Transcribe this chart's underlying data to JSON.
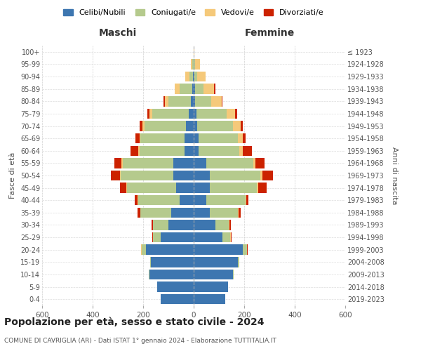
{
  "age_groups": [
    "0-4",
    "5-9",
    "10-14",
    "15-19",
    "20-24",
    "25-29",
    "30-34",
    "35-39",
    "40-44",
    "45-49",
    "50-54",
    "55-59",
    "60-64",
    "65-69",
    "70-74",
    "75-79",
    "80-84",
    "85-89",
    "90-94",
    "95-99",
    "100+"
  ],
  "birth_years": [
    "2019-2023",
    "2014-2018",
    "2009-2013",
    "2004-2008",
    "1999-2003",
    "1994-1998",
    "1989-1993",
    "1984-1988",
    "1979-1983",
    "1974-1978",
    "1969-1973",
    "1964-1968",
    "1959-1963",
    "1954-1958",
    "1949-1953",
    "1944-1948",
    "1939-1943",
    "1934-1938",
    "1929-1933",
    "1924-1928",
    "≤ 1923"
  ],
  "maschi": {
    "celibi": [
      130,
      145,
      175,
      170,
      190,
      130,
      100,
      90,
      55,
      70,
      80,
      80,
      35,
      35,
      30,
      20,
      10,
      5,
      3,
      0,
      0
    ],
    "coniugati": [
      0,
      0,
      2,
      3,
      15,
      30,
      60,
      120,
      165,
      195,
      210,
      200,
      180,
      175,
      165,
      145,
      90,
      50,
      15,
      5,
      0
    ],
    "vedovi": [
      0,
      0,
      0,
      0,
      2,
      2,
      2,
      2,
      2,
      3,
      3,
      5,
      5,
      5,
      8,
      10,
      15,
      20,
      15,
      5,
      0
    ],
    "divorziati": [
      0,
      0,
      0,
      0,
      2,
      2,
      5,
      10,
      10,
      25,
      35,
      30,
      30,
      15,
      10,
      8,
      5,
      0,
      0,
      0,
      0
    ]
  },
  "femmine": {
    "nubili": [
      125,
      135,
      155,
      175,
      195,
      115,
      85,
      65,
      50,
      65,
      65,
      50,
      20,
      20,
      15,
      10,
      5,
      5,
      3,
      0,
      0
    ],
    "coniugate": [
      0,
      0,
      2,
      5,
      15,
      30,
      55,
      110,
      155,
      185,
      200,
      185,
      160,
      155,
      140,
      120,
      65,
      35,
      10,
      5,
      0
    ],
    "vedove": [
      0,
      0,
      0,
      0,
      2,
      2,
      2,
      2,
      2,
      5,
      8,
      10,
      15,
      20,
      30,
      35,
      40,
      40,
      35,
      20,
      2
    ],
    "divorziate": [
      0,
      0,
      0,
      0,
      2,
      2,
      5,
      10,
      10,
      35,
      40,
      35,
      35,
      10,
      10,
      8,
      5,
      5,
      0,
      0,
      0
    ]
  },
  "colors": {
    "celibi": "#3d76b0",
    "coniugati": "#b5ca8d",
    "vedovi": "#f5c97a",
    "divorziati": "#cc2200"
  },
  "xlim": 600,
  "title": "Popolazione per età, sesso e stato civile - 2024",
  "subtitle": "COMUNE DI CAVRIGLIA (AR) - Dati ISTAT 1° gennaio 2024 - Elaborazione TUTTITALIA.IT",
  "ylabel_left": "Fasce di età",
  "ylabel_right": "Anni di nascita",
  "xlabel_left": "Maschi",
  "xlabel_right": "Femmine",
  "bg_color": "#ffffff",
  "grid_color": "#cccccc"
}
